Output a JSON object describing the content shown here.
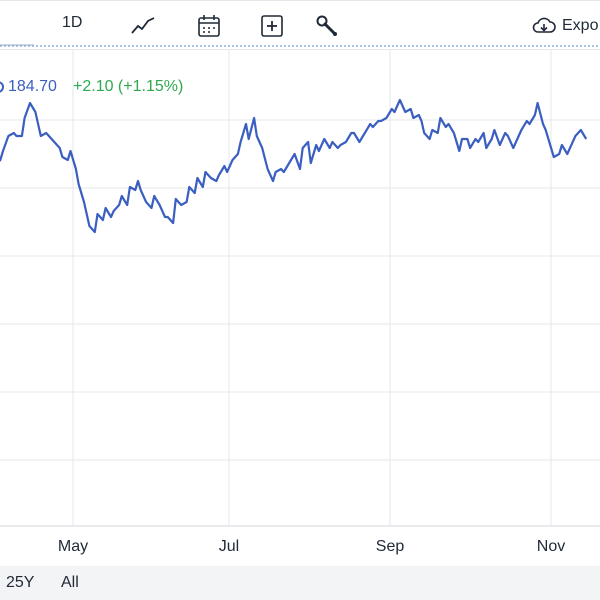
{
  "toolbar": {
    "range_label": "1D",
    "icons": [
      "line-chart-icon",
      "calendar-icon",
      "plus-box-icon",
      "wrench-icon"
    ],
    "export_label": "Expo"
  },
  "legend": {
    "price": "184.70",
    "change": "+2.10 (+1.15%)",
    "price_color": "#3b5fc0",
    "change_color": "#2fa84f"
  },
  "chart_data": {
    "type": "line",
    "x_ticks": [
      "May",
      "Jul",
      "Sep",
      "Nov"
    ],
    "reference_line": 160,
    "series": [
      {
        "color": "#3b5fc0",
        "points": [
          [
            -30,
            165
          ],
          [
            -28,
            153
          ],
          [
            -26,
            118
          ],
          [
            -24,
            112
          ],
          [
            -22,
            98
          ],
          [
            -21,
            110
          ],
          [
            -19,
            92
          ],
          [
            -17,
            125
          ],
          [
            -15,
            126
          ],
          [
            -14,
            120
          ],
          [
            -12,
            125
          ],
          [
            -10,
            119
          ],
          [
            -9,
            123
          ],
          [
            -7,
            122
          ],
          [
            -5,
            121
          ],
          [
            -3,
            122
          ],
          [
            -2,
            121
          ],
          [
            -1,
            122
          ],
          [
            0,
            125
          ],
          [
            2,
            130
          ],
          [
            4,
            131
          ],
          [
            5,
            130
          ],
          [
            7,
            130
          ],
          [
            8,
            136
          ],
          [
            10,
            141
          ],
          [
            12,
            138
          ],
          [
            14,
            130
          ],
          [
            16,
            131
          ],
          [
            17,
            130
          ],
          [
            19,
            128
          ],
          [
            21,
            126
          ],
          [
            22,
            123
          ],
          [
            24,
            122
          ],
          [
            25,
            125
          ],
          [
            27,
            119
          ],
          [
            28,
            114
          ],
          [
            30,
            108
          ],
          [
            31,
            104
          ],
          [
            32,
            100
          ],
          [
            34,
            98
          ],
          [
            35,
            104
          ],
          [
            37,
            102
          ],
          [
            38,
            106
          ],
          [
            40,
            103
          ],
          [
            41,
            105
          ],
          [
            43,
            107
          ],
          [
            44,
            110
          ],
          [
            46,
            107
          ],
          [
            47,
            113
          ],
          [
            49,
            112
          ],
          [
            50,
            115
          ],
          [
            51,
            112
          ],
          [
            53,
            108
          ],
          [
            55,
            106
          ],
          [
            56,
            110
          ],
          [
            58,
            107
          ],
          [
            60,
            103
          ],
          [
            61,
            103
          ],
          [
            63,
            101
          ],
          [
            64,
            109
          ],
          [
            66,
            107
          ],
          [
            68,
            108
          ],
          [
            69,
            113
          ],
          [
            71,
            111
          ],
          [
            72,
            116
          ],
          [
            74,
            113
          ],
          [
            75,
            118
          ],
          [
            77,
            116
          ],
          [
            79,
            115
          ],
          [
            80,
            117
          ],
          [
            82,
            120
          ],
          [
            83,
            118
          ],
          [
            85,
            122
          ],
          [
            87,
            124
          ],
          [
            88,
            128
          ],
          [
            90,
            134
          ],
          [
            91,
            129
          ],
          [
            93,
            136
          ],
          [
            94,
            130
          ],
          [
            96,
            126
          ],
          [
            98,
            119
          ],
          [
            100,
            115
          ],
          [
            101,
            118
          ],
          [
            103,
            119
          ],
          [
            104,
            118
          ],
          [
            106,
            121
          ],
          [
            108,
            124
          ],
          [
            110,
            119
          ],
          [
            111,
            126
          ],
          [
            113,
            128
          ],
          [
            114,
            121
          ],
          [
            116,
            127
          ],
          [
            117,
            125
          ],
          [
            119,
            129
          ],
          [
            121,
            126
          ],
          [
            122,
            128
          ],
          [
            124,
            126
          ],
          [
            125,
            127
          ],
          [
            127,
            128
          ],
          [
            129,
            131
          ],
          [
            130,
            131
          ],
          [
            132,
            128
          ],
          [
            134,
            131
          ],
          [
            136,
            134
          ],
          [
            137,
            133
          ],
          [
            139,
            135
          ],
          [
            140,
            135
          ],
          [
            142,
            136
          ],
          [
            144,
            139
          ],
          [
            145,
            138
          ],
          [
            147,
            142
          ],
          [
            149,
            138
          ],
          [
            151,
            139
          ],
          [
            152,
            136
          ],
          [
            154,
            137
          ],
          [
            155,
            135
          ],
          [
            156,
            131
          ],
          [
            158,
            129
          ],
          [
            159,
            132
          ],
          [
            161,
            131
          ],
          [
            162,
            136
          ],
          [
            164,
            133
          ],
          [
            165,
            134
          ],
          [
            167,
            131
          ],
          [
            169,
            125
          ],
          [
            170,
            129
          ],
          [
            172,
            129
          ],
          [
            173,
            126
          ],
          [
            175,
            129
          ],
          [
            176,
            128
          ],
          [
            178,
            131
          ],
          [
            179,
            126
          ],
          [
            181,
            129
          ],
          [
            182,
            132
          ],
          [
            184,
            127
          ],
          [
            186,
            131
          ],
          [
            187,
            130
          ],
          [
            189,
            126
          ],
          [
            190,
            128
          ],
          [
            192,
            132
          ],
          [
            194,
            135
          ],
          [
            195,
            134
          ],
          [
            197,
            137
          ],
          [
            198,
            141
          ],
          [
            200,
            134
          ],
          [
            201,
            132
          ],
          [
            203,
            126
          ],
          [
            204,
            123
          ],
          [
            206,
            124
          ],
          [
            207,
            127
          ],
          [
            209,
            124
          ],
          [
            211,
            128
          ],
          [
            212,
            130
          ],
          [
            214,
            132
          ],
          [
            216,
            129
          ]
        ]
      }
    ]
  },
  "range_bar": {
    "buttons": [
      "25Y",
      "All"
    ]
  }
}
